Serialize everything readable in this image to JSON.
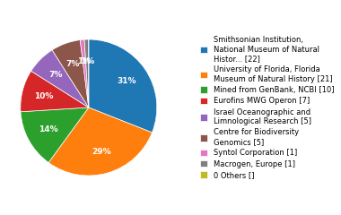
{
  "chart_data": {
    "type": "pie",
    "categories": [
      "Smithsonian Institution,\nNational Museum of Natural\nHistor... [22]",
      "University of Florida, Florida\nMuseum of Natural History [21]",
      "Mined from GenBank, NCBI [10]",
      "Eurofins MWG Operon [7]",
      "Israel Oceanographic and\nLimnological Research [5]",
      "Centre for Biodiversity\nGenomics [5]",
      "Syntol Corporation [1]",
      "Macrogen, Europe [1]",
      "0 Others []"
    ],
    "values": [
      31,
      29,
      14,
      10,
      7,
      7,
      1,
      1,
      0
    ],
    "value_labels": [
      "31%",
      "29%",
      "14%",
      "10%",
      "7%",
      "7%",
      "1%",
      "1%",
      null
    ],
    "data_labels": true,
    "legend": "center right"
  }
}
